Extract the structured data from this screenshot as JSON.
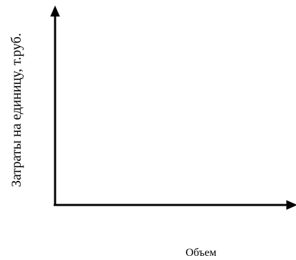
{
  "chart_data": {
    "type": "line",
    "title": "",
    "xlabel": "Объем",
    "ylabel": "Затраты на единицу, т.руб.",
    "series": [],
    "grid": false
  },
  "colors": {
    "axis": "#000000",
    "background": "#ffffff"
  }
}
